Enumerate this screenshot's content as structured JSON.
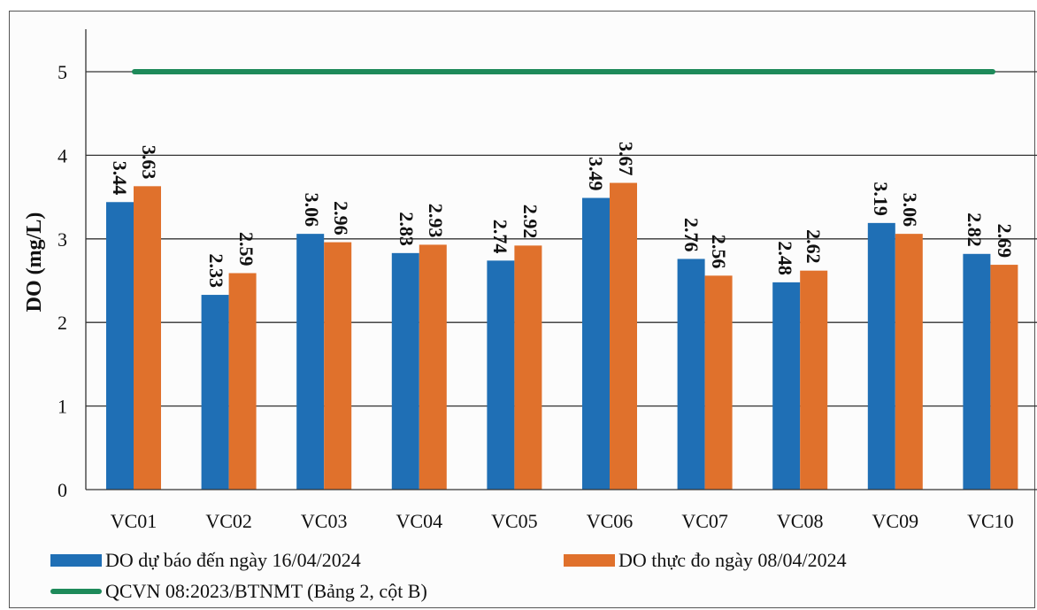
{
  "chart_data": {
    "type": "bar",
    "ylabel": "DO (mg/L)",
    "ylim": [
      0,
      5.5
    ],
    "yticks": [
      0,
      1,
      2,
      3,
      4,
      5
    ],
    "grid": true,
    "categories": [
      "VC01",
      "VC02",
      "VC03",
      "VC04",
      "VC05",
      "VC06",
      "VC07",
      "VC08",
      "VC09",
      "VC10"
    ],
    "series": [
      {
        "name": "DO dự báo đến ngày 16/04/2024",
        "color": "#1f6fb5",
        "values": [
          3.44,
          2.33,
          3.06,
          2.83,
          2.74,
          3.49,
          2.76,
          2.48,
          3.19,
          2.82
        ],
        "labels": [
          "3.44",
          "2.33",
          "3.06",
          "2.83",
          "2.74",
          "3.49",
          "2.76",
          "2.48",
          "3.19",
          "2.82"
        ]
      },
      {
        "name": "DO thực đo ngày 08/04/2024",
        "color": "#e0712c",
        "values": [
          3.63,
          2.59,
          2.96,
          2.93,
          2.92,
          3.67,
          2.56,
          2.62,
          3.06,
          2.69
        ],
        "labels": [
          "3.63",
          "2.59",
          "2.96",
          "2.93",
          "2.92",
          "3.67",
          "2.56",
          "2.62",
          "3.06",
          "2.69"
        ]
      }
    ],
    "threshold": {
      "name": "QCVN 08:2023/BTNMT (Bảng 2, cột B)",
      "value": 5,
      "color": "#1e8a5a"
    },
    "legend_position": "bottom"
  }
}
